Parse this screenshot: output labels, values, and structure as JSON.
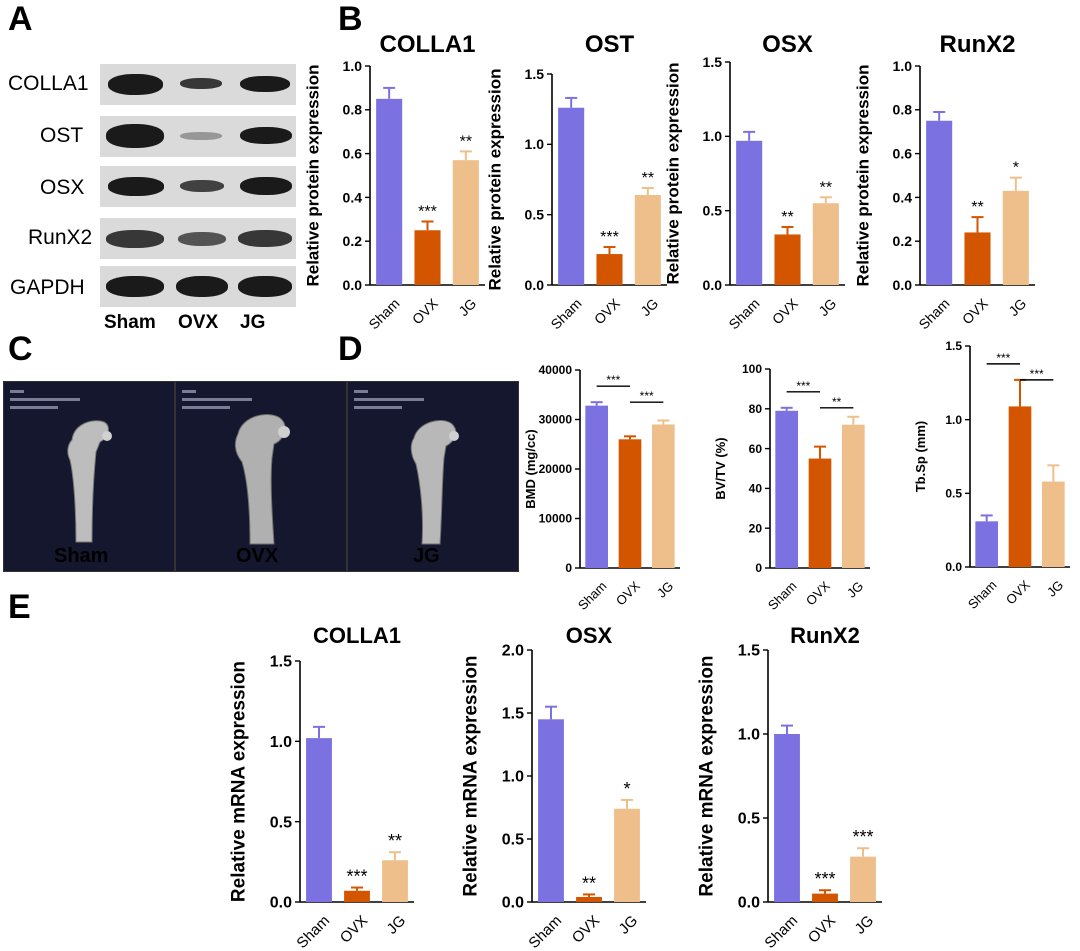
{
  "panels": {
    "A": "A",
    "B": "B",
    "C": "C",
    "D": "D",
    "E": "E"
  },
  "colors": {
    "sham": "#7b71e0",
    "ovx": "#d45500",
    "jg": "#eebf8a",
    "ct_bg": "#15172e"
  },
  "western_blot": {
    "rows": [
      "COLLA1",
      "OST",
      "OSX",
      "RunX2",
      "GAPDH"
    ],
    "lanes": [
      "Sham",
      "OVX",
      "JG"
    ]
  },
  "micro_ct": {
    "captions": [
      "Sham",
      "OVX",
      "JG"
    ]
  },
  "chart_data": [
    {
      "type": "bar",
      "panel": "B",
      "title": "COLLA1",
      "ylabel": "Relative protein expression",
      "categories": [
        "Sham",
        "OVX",
        "JG"
      ],
      "values": [
        0.85,
        0.25,
        0.57
      ],
      "errors": [
        0.05,
        0.04,
        0.04
      ],
      "ylim": [
        0,
        1.0
      ],
      "yticks": [
        "0.0",
        "0.2",
        "0.4",
        "0.6",
        "0.8",
        "1.0"
      ],
      "significance": [
        "",
        "***",
        "**"
      ]
    },
    {
      "type": "bar",
      "panel": "B",
      "title": "OST",
      "ylabel": "Relative protein expression",
      "categories": [
        "Sham",
        "OVX",
        "JG"
      ],
      "values": [
        1.26,
        0.22,
        0.64
      ],
      "errors": [
        0.07,
        0.05,
        0.05
      ],
      "ylim": [
        0,
        1.5
      ],
      "yticks": [
        "0.0",
        "0.5",
        "1.0",
        "1.5"
      ],
      "significance": [
        "",
        "***",
        "**"
      ]
    },
    {
      "type": "bar",
      "panel": "B",
      "title": "OSX",
      "ylabel": "Relative protein expression",
      "categories": [
        "Sham",
        "OVX",
        "JG"
      ],
      "values": [
        0.97,
        0.34,
        0.55
      ],
      "errors": [
        0.06,
        0.05,
        0.04
      ],
      "ylim": [
        0,
        1.5
      ],
      "yticks": [
        "0.0",
        "0.5",
        "1.0",
        "1.5"
      ],
      "significance": [
        "",
        "**",
        "**"
      ]
    },
    {
      "type": "bar",
      "panel": "B",
      "title": "RunX2",
      "ylabel": "Relative protein expression",
      "categories": [
        "Sham",
        "OVX",
        "JG"
      ],
      "values": [
        0.75,
        0.24,
        0.43
      ],
      "errors": [
        0.04,
        0.07,
        0.06
      ],
      "ylim": [
        0,
        1.0
      ],
      "yticks": [
        "0.0",
        "0.2",
        "0.4",
        "0.6",
        "0.8",
        "1.0"
      ],
      "significance": [
        "",
        "**",
        "*"
      ]
    },
    {
      "type": "bar",
      "panel": "D",
      "title": "",
      "ylabel": "BMD (mg/cc)",
      "categories": [
        "Sham",
        "OVX",
        "JG"
      ],
      "values": [
        32800,
        26000,
        29000
      ],
      "errors": [
        700,
        600,
        800
      ],
      "ylim": [
        0,
        40000
      ],
      "yticks": [
        "0",
        "10000",
        "20000",
        "30000",
        "40000"
      ],
      "brackets": [
        {
          "from": 0,
          "to": 1,
          "label": "***"
        },
        {
          "from": 1,
          "to": 2,
          "label": "***"
        }
      ]
    },
    {
      "type": "bar",
      "panel": "D",
      "title": "",
      "ylabel": "BV/TV (%)",
      "categories": [
        "Sham",
        "OVX",
        "JG"
      ],
      "values": [
        79,
        55,
        72
      ],
      "errors": [
        1.5,
        6,
        4
      ],
      "ylim": [
        0,
        100
      ],
      "yticks": [
        "0",
        "20",
        "40",
        "60",
        "80",
        "100"
      ],
      "brackets": [
        {
          "from": 0,
          "to": 1,
          "label": "***"
        },
        {
          "from": 1,
          "to": 2,
          "label": "**"
        }
      ]
    },
    {
      "type": "bar",
      "panel": "D",
      "title": "",
      "ylabel": "Tb.Sp (mm)",
      "categories": [
        "Sham",
        "OVX",
        "JG"
      ],
      "values": [
        0.31,
        1.09,
        0.58
      ],
      "errors": [
        0.04,
        0.18,
        0.11
      ],
      "ylim": [
        0,
        1.5
      ],
      "yticks": [
        "0.0",
        "0.5",
        "1.0",
        "1.5"
      ],
      "brackets": [
        {
          "from": 0,
          "to": 1,
          "label": "***"
        },
        {
          "from": 1,
          "to": 2,
          "label": "***"
        }
      ]
    },
    {
      "type": "bar",
      "panel": "E",
      "title": "COLLA1",
      "ylabel": "Relative mRNA expression",
      "categories": [
        "Sham",
        "OVX",
        "JG"
      ],
      "values": [
        1.02,
        0.07,
        0.26
      ],
      "errors": [
        0.07,
        0.02,
        0.05
      ],
      "ylim": [
        0,
        1.5
      ],
      "yticks": [
        "0.0",
        "0.5",
        "1.0",
        "1.5"
      ],
      "significance": [
        "",
        "***",
        "**"
      ]
    },
    {
      "type": "bar",
      "panel": "E",
      "title": "OSX",
      "ylabel": "Relative mRNA expression",
      "categories": [
        "Sham",
        "OVX",
        "JG"
      ],
      "values": [
        1.45,
        0.04,
        0.74
      ],
      "errors": [
        0.1,
        0.02,
        0.07
      ],
      "ylim": [
        0,
        2.0
      ],
      "yticks": [
        "0.0",
        "0.5",
        "1.0",
        "1.5",
        "2.0"
      ],
      "significance": [
        "",
        "**",
        "*"
      ]
    },
    {
      "type": "bar",
      "panel": "E",
      "title": "RunX2",
      "ylabel": "Relative mRNA expression",
      "categories": [
        "Sham",
        "OVX",
        "JG"
      ],
      "values": [
        1.0,
        0.05,
        0.27
      ],
      "errors": [
        0.05,
        0.02,
        0.05
      ],
      "ylim": [
        0,
        1.5
      ],
      "yticks": [
        "0.0",
        "0.5",
        "1.0",
        "1.5"
      ],
      "significance": [
        "",
        "***",
        "***"
      ]
    }
  ]
}
